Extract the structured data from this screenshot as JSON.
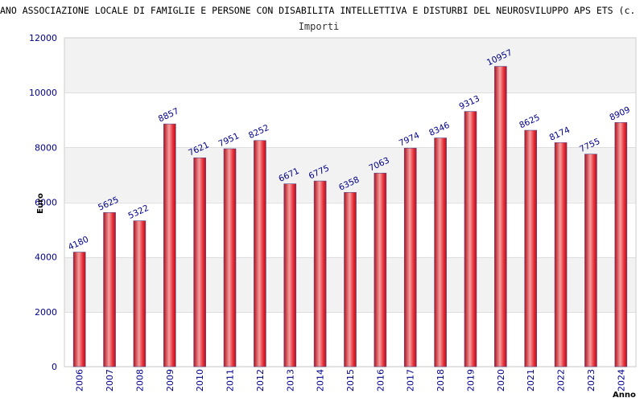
{
  "colors": {
    "bar_light": "#f6a0a0",
    "bar_mid": "#e8323c",
    "bar_dark": "#b0101c",
    "bar_edge": "#5a4a8a",
    "band_alt": "#f2f2f2",
    "axis_text": "#00008b"
  },
  "chart_data": {
    "type": "bar",
    "title": "ANO ASSOCIAZIONE LOCALE DI FAMIGLIE E PERSONE CON DISABILITA INTELLETTIVA E DISTURBI DEL NEUROSVILUPPO APS ETS (c.",
    "subtitle": "Importi",
    "xlabel": "Anno",
    "ylabel": "Euro",
    "ylim": [
      0,
      12000
    ],
    "yticks": [
      "0",
      "2000",
      "4000",
      "6000",
      "8000",
      "10000",
      "12000"
    ],
    "grid": true,
    "categories": [
      "2006",
      "2007",
      "2008",
      "2009",
      "2010",
      "2011",
      "2012",
      "2013",
      "2014",
      "2015",
      "2016",
      "2017",
      "2018",
      "2019",
      "2020",
      "2021",
      "2022",
      "2023",
      "2024"
    ],
    "values": [
      4180,
      5625,
      5322,
      8857,
      7621,
      7951,
      8252,
      6671,
      6775,
      6358,
      7063,
      7974,
      8346,
      9313,
      10957,
      8625,
      8174,
      7755,
      8909
    ],
    "value_labels": [
      "4180",
      "5625",
      "5322",
      "8857",
      "7621",
      "7951",
      "8252",
      "6671",
      "6775",
      "6358",
      "7063",
      "7974",
      "8346",
      "9313",
      "10957",
      "8625",
      "8174",
      "7755",
      "8909"
    ]
  }
}
